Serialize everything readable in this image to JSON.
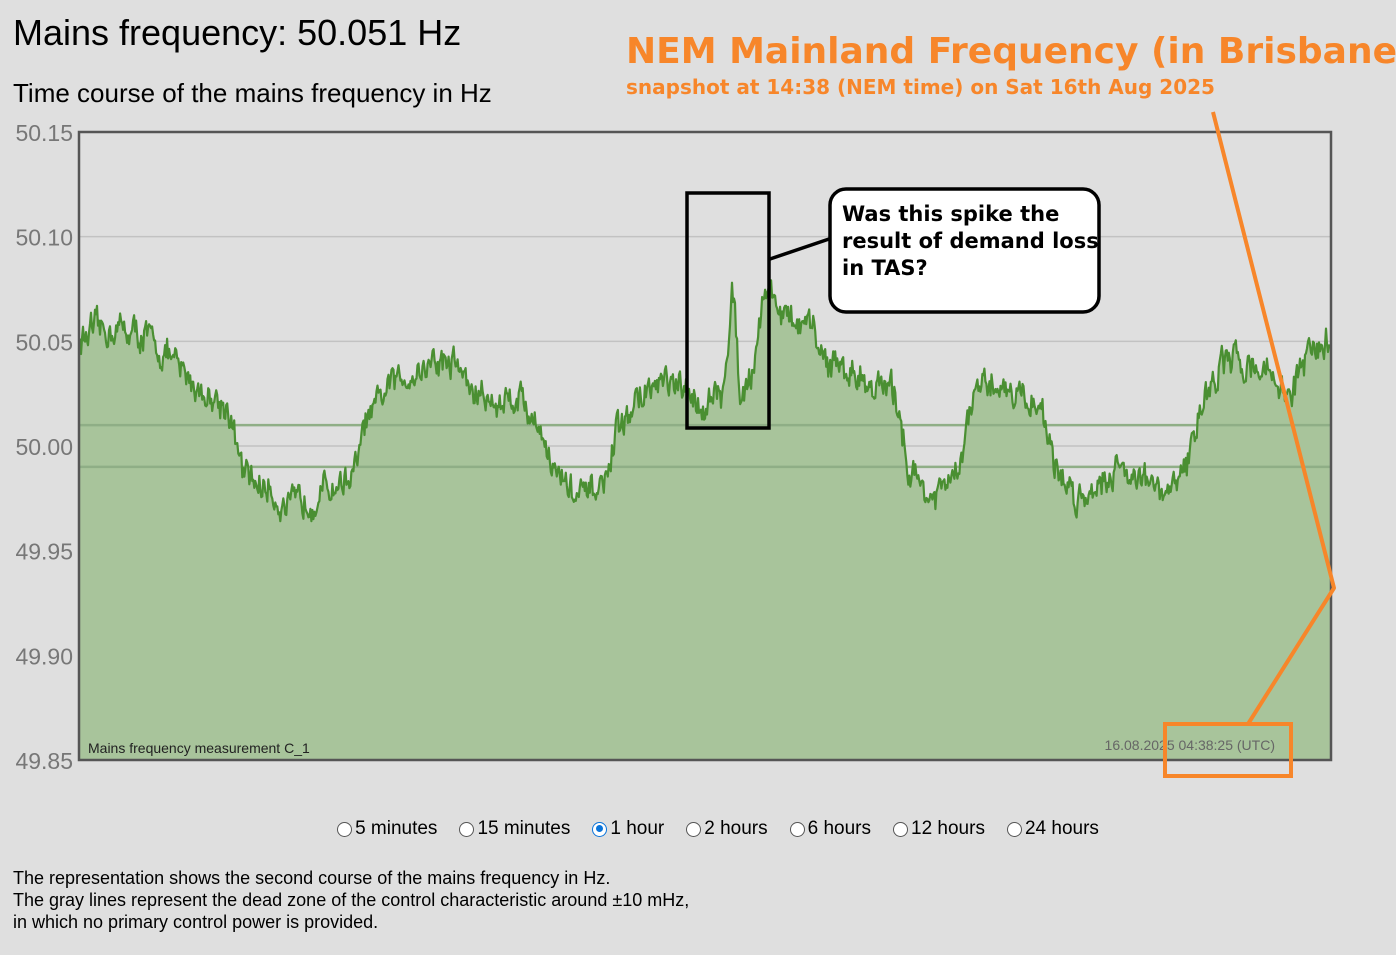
{
  "header": {
    "title": "Mains frequency: 50.051 Hz",
    "subtitle": "Time course of the mains frequency in Hz"
  },
  "overlay": {
    "title": "NEM Mainland Frequency (in Brisbane)",
    "subtitle": "snapshot at 14:38 (NEM time) on Sat 16th Aug 2025",
    "callout_lines": [
      "Was this spike the",
      "result of demand loss",
      "in TAS?"
    ],
    "accent_color": "#f7862a"
  },
  "chart_data": {
    "type": "area",
    "title": "Time course of the mains frequency in Hz",
    "ylabel": "",
    "xlabel": "",
    "ylim": [
      49.85,
      50.15
    ],
    "yticks": [
      "50.15",
      "50.10",
      "50.05",
      "50.00",
      "49.95",
      "49.90",
      "49.85"
    ],
    "ytick_values": [
      50.15,
      50.1,
      50.05,
      50.0,
      49.95,
      49.9,
      49.85
    ],
    "reference_lines": [
      50.01,
      49.99
    ],
    "grid": true,
    "series_label": "Mains frequency measurement C_1",
    "timestamp": "16.08.2025 04:38:25 (UTC)",
    "colors": {
      "line": "#4a8f32",
      "fill": "#a8c49b",
      "plot_bg": "#dfdfdf",
      "reference": "#8fae86"
    },
    "x_minutes": [
      0,
      1,
      2,
      3,
      4,
      5,
      6,
      7,
      8,
      9,
      10,
      11,
      12,
      13,
      14,
      15,
      16,
      17,
      18,
      19,
      20,
      21,
      22,
      23,
      24,
      25,
      26,
      27,
      28,
      29,
      30,
      31,
      32,
      33,
      34,
      35,
      36,
      37,
      38,
      39,
      40,
      41,
      42,
      43,
      44,
      45,
      46,
      47,
      48,
      49,
      50,
      51,
      52,
      53,
      54,
      55,
      56,
      57,
      58,
      59,
      60
    ],
    "values": [
      50.05,
      50.055,
      50.056,
      50.053,
      50.045,
      50.035,
      50.025,
      50.02,
      49.985,
      49.98,
      49.97,
      49.975,
      49.98,
      49.985,
      50.015,
      50.03,
      50.035,
      50.04,
      50.04,
      50.025,
      50.02,
      50.025,
      50.01,
      49.985,
      49.975,
      49.98,
      50.01,
      50.025,
      50.03,
      50.025,
      50.02,
      50.025,
      50.03,
      50.075,
      50.06,
      50.055,
      50.04,
      50.035,
      50.03,
      50.025,
      49.985,
      49.975,
      49.985,
      50.025,
      50.03,
      50.025,
      50.02,
      49.985,
      49.975,
      49.985,
      49.99,
      49.985,
      49.975,
      49.99,
      50.025,
      50.04,
      50.04,
      50.035,
      50.025,
      50.045,
      50.05
    ],
    "spike": {
      "x_minute": 31.3,
      "value": 50.102
    }
  },
  "time_ranges": {
    "options": [
      "5 minutes",
      "15 minutes",
      "1 hour",
      "2 hours",
      "6 hours",
      "12 hours",
      "24 hours"
    ],
    "selected": "1 hour"
  },
  "description": {
    "line1": "The representation shows the second course of the mains frequency in Hz.",
    "line2": "The gray lines represent the dead zone of the control characteristic around ±10 mHz,",
    "line3": "in which no primary control power is provided."
  }
}
